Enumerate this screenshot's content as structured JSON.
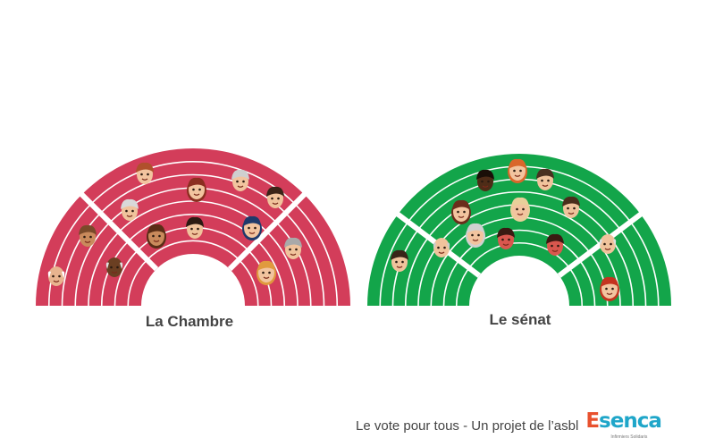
{
  "chamber": {
    "label": "La Chambre",
    "color": "#d33d5a",
    "faces": [
      {
        "name": "face-bald-glasses-man",
        "skin": "#e8b48f",
        "hair": "#ffffff",
        "style": "bald"
      },
      {
        "name": "face-bearded-man",
        "skin": "#c98a5c",
        "hair": "#7a4a2a",
        "style": "short"
      },
      {
        "name": "face-dark-skin-bald-man",
        "skin": "#6b3f22",
        "hair": "#dddddd",
        "style": "bald"
      },
      {
        "name": "face-grey-beard-man",
        "skin": "#f0c39c",
        "hair": "#d9d9d9",
        "style": "short"
      },
      {
        "name": "face-red-glasses-man",
        "skin": "#f2c49f",
        "hair": "#b0502c",
        "style": "short"
      },
      {
        "name": "face-red-hair-woman",
        "skin": "#f2c49f",
        "hair": "#8b2e20",
        "style": "long"
      },
      {
        "name": "face-black-hair-man",
        "skin": "#f0c39c",
        "hair": "#2b1a12",
        "style": "short"
      },
      {
        "name": "face-curly-woman",
        "skin": "#c98a5c",
        "hair": "#5a2d16",
        "style": "long"
      },
      {
        "name": "face-old-woman",
        "skin": "#f2c49f",
        "hair": "#cfcfcf",
        "style": "short"
      },
      {
        "name": "face-dark-hair-man",
        "skin": "#f0c39c",
        "hair": "#3a2418",
        "style": "short"
      },
      {
        "name": "face-hijab-woman",
        "skin": "#f2c49f",
        "hair": "#1f3a6b",
        "style": "long"
      },
      {
        "name": "face-grey-man",
        "skin": "#f0c39c",
        "hair": "#a9a9a9",
        "style": "short"
      },
      {
        "name": "face-blonde-woman",
        "skin": "#f2c49f",
        "hair": "#e09a3e",
        "style": "long"
      }
    ]
  },
  "senate": {
    "label": "Le sénat",
    "color": "#13a54a",
    "faces": [
      {
        "name": "face-young-man",
        "skin": "#f0c39c",
        "hair": "#3a2418",
        "style": "short"
      },
      {
        "name": "face-old-man-glasses",
        "skin": "#f0c39c",
        "hair": "#cccccc",
        "style": "bald"
      },
      {
        "name": "face-woman-brown-hair",
        "skin": "#f2c49f",
        "hair": "#6b2d1c",
        "style": "long"
      },
      {
        "name": "face-grey-woman",
        "skin": "#f2c49f",
        "hair": "#d0d0d0",
        "style": "long"
      },
      {
        "name": "face-dark-skin-man",
        "skin": "#4e2c17",
        "hair": "#1a0f08",
        "style": "short"
      },
      {
        "name": "face-red-face-woman",
        "skin": "#d9574e",
        "hair": "#3a1a12",
        "style": "short"
      },
      {
        "name": "face-ginger-woman",
        "skin": "#f2c49f",
        "hair": "#d9672b",
        "style": "long"
      },
      {
        "name": "face-blonde-woman",
        "skin": "#f2c49f",
        "hair": "#e8cf9a",
        "style": "long"
      },
      {
        "name": "face-man-glasses",
        "skin": "#f0c39c",
        "hair": "#4a3020",
        "style": "short"
      },
      {
        "name": "face-brown-hair-man",
        "skin": "#f0c39c",
        "hair": "#4a2e1c",
        "style": "short"
      },
      {
        "name": "face-red-face-man",
        "skin": "#d9574e",
        "hair": "#3a1a12",
        "style": "short"
      },
      {
        "name": "face-bald-old-man",
        "skin": "#f0c39c",
        "hair": "#dddddd",
        "style": "bald"
      },
      {
        "name": "face-red-hair-woman",
        "skin": "#f2c49f",
        "hair": "#c4331f",
        "style": "long"
      }
    ]
  },
  "footer": {
    "text": "Le vote pour tous - Un projet de l’asbl",
    "logo_e": "E",
    "logo_rest": "senca",
    "logo_sub": "Infirmiers Solidaris"
  }
}
